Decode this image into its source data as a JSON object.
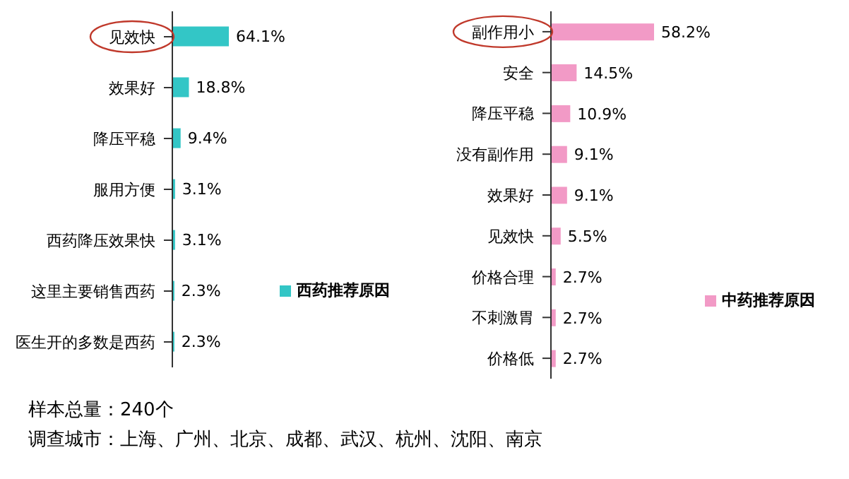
{
  "chart_data": [
    {
      "type": "bar",
      "orientation": "horizontal",
      "categories": [
        "见效快",
        "效果好",
        "降压平稳",
        "服用方便",
        "西药降压效果快",
        "这里主要销售西药",
        "医生开的多数是西药"
      ],
      "series": [
        {
          "name": "西药推荐原因",
          "color": "#33c6c6",
          "values": [
            64.1,
            18.8,
            9.4,
            3.1,
            3.1,
            2.3,
            2.3
          ],
          "value_labels": [
            "64.1%",
            "18.8%",
            "9.4%",
            "3.1%",
            "3.1%",
            "2.3%",
            "2.3%"
          ]
        }
      ],
      "legend": "right",
      "grid": false,
      "annotations": [
        "样本总量：240个",
        "调查城市：上海、广州、北京、成都、武汉、杭州、沈阳、南京"
      ]
    },
    {
      "type": "bar",
      "orientation": "horizontal",
      "categories": [
        "副作用小",
        "安全",
        "降压平稳",
        "没有副作用",
        "效果好",
        "见效快",
        "价格合理",
        "不刺激胃",
        "价格低"
      ],
      "series": [
        {
          "name": "中药推荐原因",
          "color": "#f29ac6",
          "values": [
            58.2,
            14.5,
            10.9,
            9.1,
            9.1,
            5.5,
            2.7,
            2.7,
            2.7
          ],
          "value_labels": [
            "58.2%",
            "14.5%",
            "10.9%",
            "9.1%",
            "9.1%",
            "5.5%",
            "2.7%",
            "2.7%",
            "2.7%"
          ]
        }
      ],
      "legend": "right",
      "grid": false
    }
  ]
}
